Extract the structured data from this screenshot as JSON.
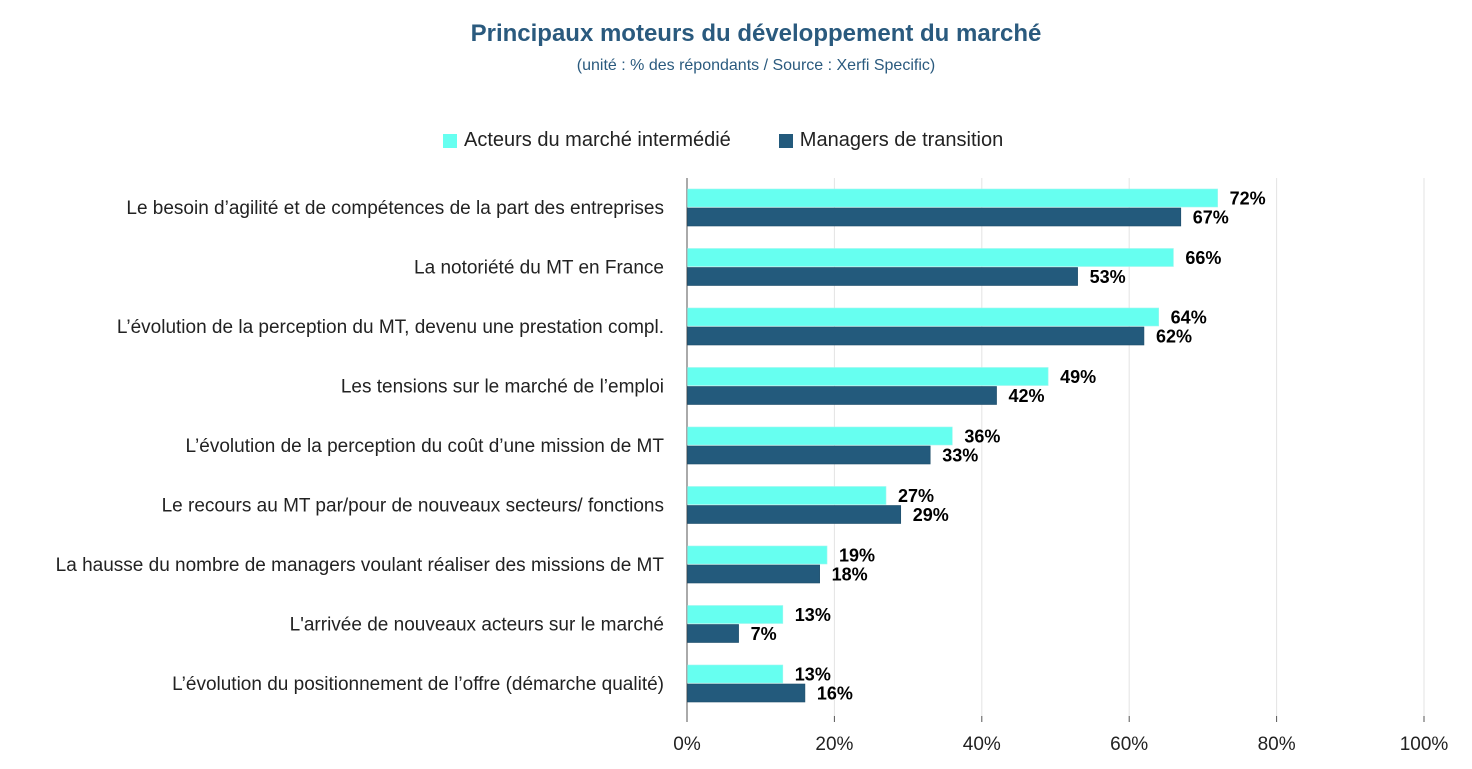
{
  "chart_data": {
    "type": "bar",
    "orientation": "horizontal",
    "title": "Principaux moteurs du développement du marché",
    "subtitle": "(unité : % des répondants / Source : Xerfi Specific)",
    "categories": [
      "Le besoin d’agilité et de compétences de la part des entreprises",
      "La notoriété du MT en France",
      "L’évolution de la perception du MT, devenu une prestation compl.",
      "Les tensions sur le marché de l’emploi",
      "L’évolution de la perception du coût d’une mission de MT",
      "Le recours au MT par/pour de nouveaux secteurs/ fonctions",
      "La hausse du nombre de managers voulant réaliser des missions de MT",
      "L'arrivée de nouveaux acteurs sur le marché",
      "L’évolution du positionnement de l’offre (démarche qualité)"
    ],
    "series": [
      {
        "name": "Acteurs du marché intermédié",
        "color": "#66fff0",
        "values": [
          72,
          66,
          64,
          49,
          36,
          27,
          19,
          13,
          13
        ]
      },
      {
        "name": "Managers de transition",
        "color": "#235a7c",
        "values": [
          67,
          53,
          62,
          42,
          33,
          29,
          18,
          7,
          16
        ]
      }
    ],
    "value_suffix": "%",
    "xlim": [
      0,
      100
    ],
    "xticks": [
      0,
      20,
      40,
      60,
      80,
      100
    ],
    "xtick_labels": [
      "0%",
      "20%",
      "40%",
      "60%",
      "80%",
      "100%"
    ],
    "grid": true,
    "legend_position": "top"
  }
}
